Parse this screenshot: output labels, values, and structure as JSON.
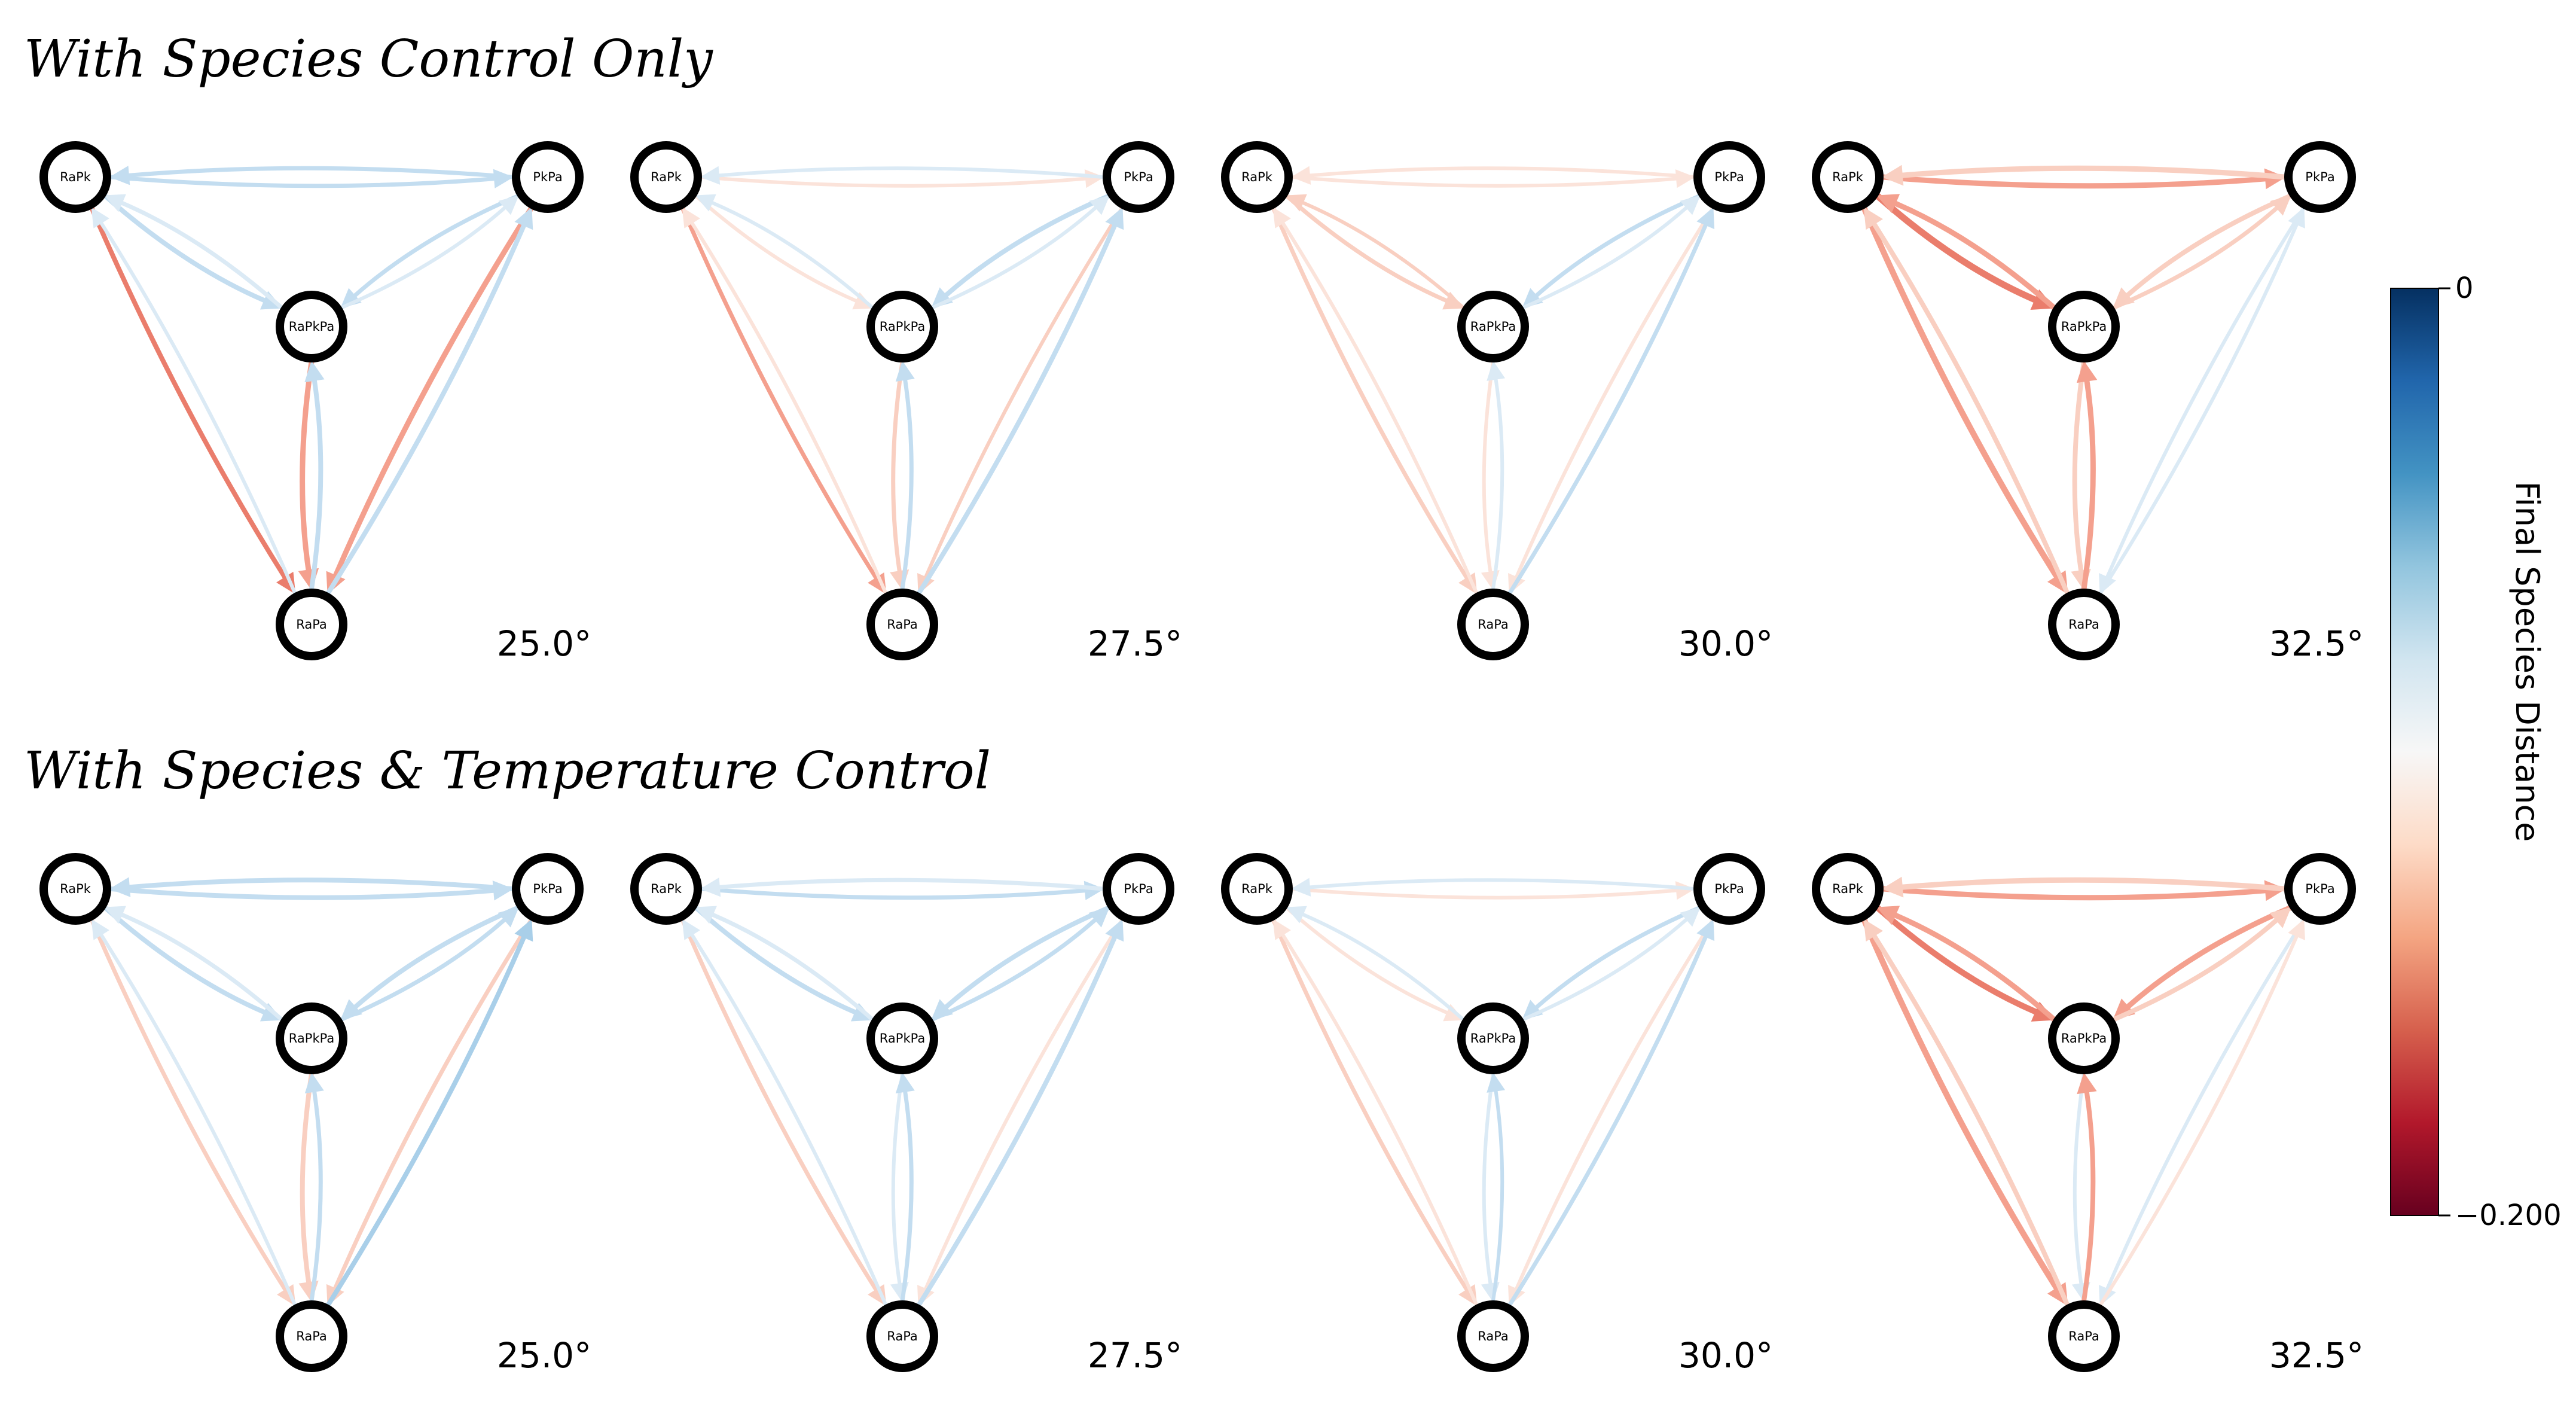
{
  "rows": [
    {
      "title": "With Species Control Only",
      "panels": [
        {
          "temperature": "25.0°"
        },
        {
          "temperature": "27.5°"
        },
        {
          "temperature": "30.0°"
        },
        {
          "temperature": "32.5°"
        }
      ]
    },
    {
      "title": "With Species & Temperature Control",
      "panels": [
        {
          "temperature": "25.0°"
        },
        {
          "temperature": "27.5°"
        },
        {
          "temperature": "30.0°"
        },
        {
          "temperature": "32.5°"
        }
      ]
    }
  ],
  "nodes": [
    "RaPk",
    "PkPa",
    "RaPkPa",
    "RaPa"
  ],
  "edge_colors": {
    "strong_red": "#ea7d6c",
    "red": "#f4a08e",
    "light_red": "#f9cfc1",
    "faint_red": "#fbe3da",
    "faint_blue": "#dbeaf5",
    "light_blue": "#c3ddf0",
    "blue": "#a9cfe9"
  },
  "colorbar": {
    "label": "Final Species Distance",
    "max_label": "0",
    "min_label": "−0.200",
    "colormap": "RdBu",
    "colors": [
      "#053061",
      "#2166ac",
      "#4393c3",
      "#92c5de",
      "#d1e5f0",
      "#f7f7f7",
      "#fddbc7",
      "#f4a582",
      "#d6604d",
      "#b2182b",
      "#67001f"
    ]
  }
}
